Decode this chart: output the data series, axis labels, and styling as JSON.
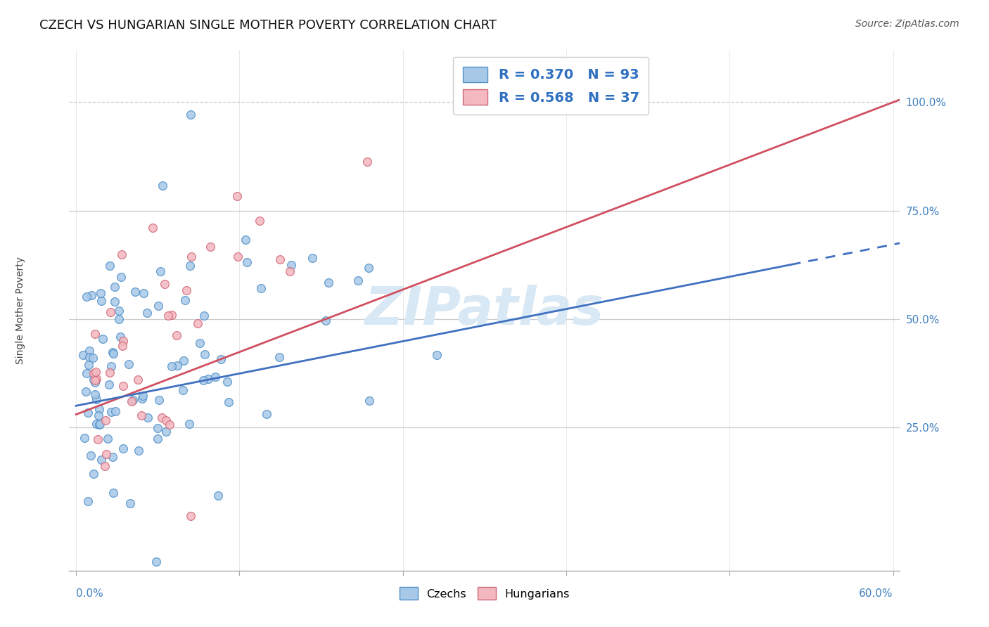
{
  "title": "CZECH VS HUNGARIAN SINGLE MOTHER POVERTY CORRELATION CHART",
  "source": "Source: ZipAtlas.com",
  "ylabel": "Single Mother Poverty",
  "xlim": [
    0.0,
    0.6
  ],
  "ylim": [
    -0.08,
    1.12
  ],
  "yticks": [
    0.0,
    0.25,
    0.5,
    0.75,
    1.0
  ],
  "ytick_labels": [
    "",
    "25.0%",
    "50.0%",
    "75.0%",
    "100.0%"
  ],
  "xtick_positions": [
    0.0,
    0.12,
    0.24,
    0.36,
    0.48,
    0.6
  ],
  "czech_R": 0.37,
  "czech_N": 93,
  "hungarian_R": 0.568,
  "hungarian_N": 37,
  "blue_dot_color": "#a8c8e8",
  "blue_dot_edge": "#5090c8",
  "pink_dot_color": "#f4b8c0",
  "pink_dot_edge": "#d06878",
  "blue_line_color": "#4070c0",
  "pink_line_color": "#d05060",
  "legend_text_color": "#3070c0",
  "tick_color": "#4080c0",
  "grid_color": "#cccccc",
  "bg_color": "#ffffff",
  "watermark": "ZIPatlas",
  "watermark_color": "#d8e8f4",
  "title_fontsize": 13,
  "source_fontsize": 10,
  "axis_label_fontsize": 10
}
